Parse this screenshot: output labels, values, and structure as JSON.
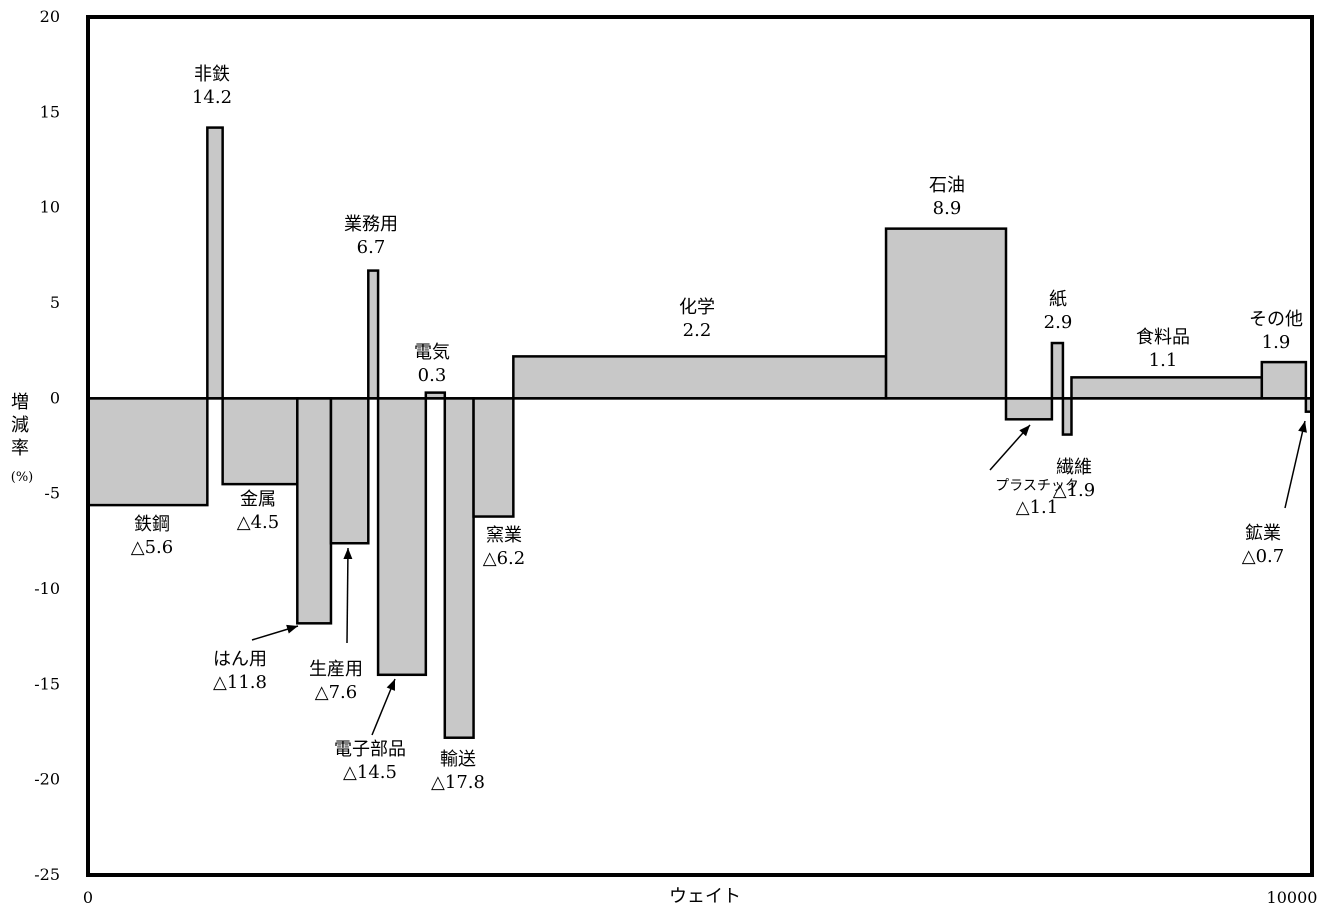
{
  "chart_data": {
    "type": "bar",
    "title": "",
    "xlabel": "ウェイト",
    "ylabel": [
      "増",
      "減",
      "率",
      "(%)"
    ],
    "xlim": [
      0,
      10000
    ],
    "ylim": [
      -25,
      20
    ],
    "yticks": [
      20,
      15,
      10,
      5,
      0,
      -5,
      -10,
      -15,
      -20,
      -25
    ],
    "ytick_labels": [
      "20",
      "15",
      "10",
      "5",
      "0",
      "-5",
      "-10",
      "-15",
      "-20",
      "-25"
    ],
    "xtick_labels": [
      "0",
      "10000"
    ],
    "grid": false,
    "bar_color": "#c8c8c8",
    "bars": [
      {
        "name": "鉄鋼",
        "value_label": "△5.6",
        "x0": 0,
        "x1": 975,
        "value": -5.6
      },
      {
        "name": "非鉄",
        "value_label": "14.2",
        "x0": 975,
        "x1": 1100,
        "value": 14.2
      },
      {
        "name": "金属",
        "value_label": "△4.5",
        "x0": 1100,
        "x1": 1710,
        "value": -4.5
      },
      {
        "name": "はん用",
        "value_label": "△11.8",
        "x0": 1710,
        "x1": 1985,
        "value": -11.8
      },
      {
        "name": "生産用",
        "value_label": "△7.6",
        "x0": 1985,
        "x1": 2290,
        "value": -7.6
      },
      {
        "name": "業務用",
        "value_label": "6.7",
        "x0": 2290,
        "x1": 2370,
        "value": 6.7
      },
      {
        "name": "電子部品",
        "value_label": "△14.5",
        "x0": 2370,
        "x1": 2760,
        "value": -14.5
      },
      {
        "name": "電気",
        "value_label": "0.3",
        "x0": 2760,
        "x1": 2915,
        "value": 0.3
      },
      {
        "name": "輸送",
        "value_label": "△17.8",
        "x0": 2915,
        "x1": 3150,
        "value": -17.8
      },
      {
        "name": "窯業",
        "value_label": "△6.2",
        "x0": 3150,
        "x1": 3475,
        "value": -6.2
      },
      {
        "name": "化学",
        "value_label": "2.2",
        "x0": 3475,
        "x1": 6520,
        "value": 2.2
      },
      {
        "name": "石油",
        "value_label": "8.9",
        "x0": 6520,
        "x1": 7500,
        "value": 8.9
      },
      {
        "name": "プラスチック",
        "value_label": "△1.1",
        "x0": 7500,
        "x1": 7875,
        "value": -1.1
      },
      {
        "name": "紙",
        "value_label": "2.9",
        "x0": 7875,
        "x1": 7965,
        "value": 2.9
      },
      {
        "name": "繊維",
        "value_label": "△1.9",
        "x0": 7965,
        "x1": 8035,
        "value": -1.9
      },
      {
        "name": "食料品",
        "value_label": "1.1",
        "x0": 8035,
        "x1": 9590,
        "value": 1.1
      },
      {
        "name": "その他",
        "value_label": "1.9",
        "x0": 9590,
        "x1": 9950,
        "value": 1.9
      },
      {
        "name": "鉱業",
        "value_label": "△0.7",
        "x0": 9950,
        "x1": 10000,
        "value": -0.7
      }
    ]
  }
}
